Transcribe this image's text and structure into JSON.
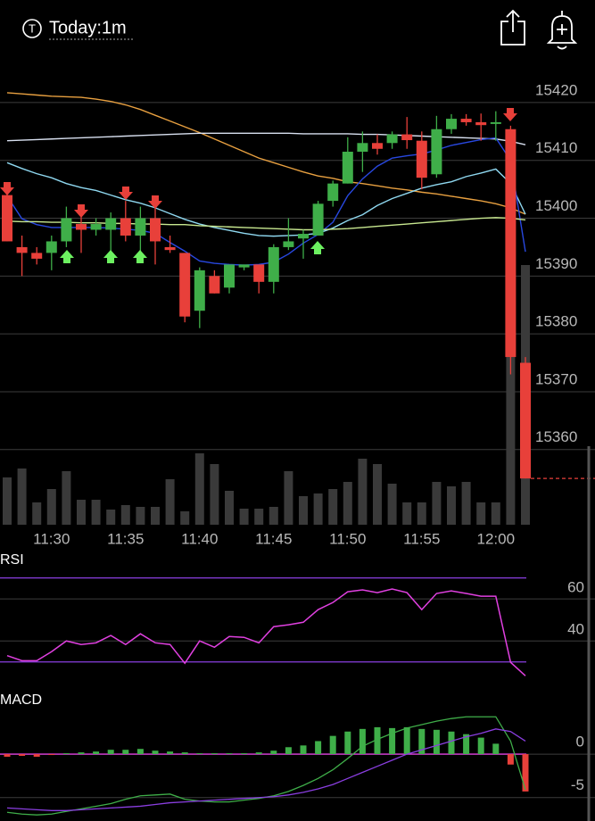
{
  "header": {
    "icon": "T",
    "title": "Today:1m"
  },
  "chart_data": [
    {
      "type": "candlestick",
      "categories": [
        null,
        null,
        null,
        "11:30",
        null,
        null,
        null,
        null,
        "11:35",
        null,
        null,
        null,
        null,
        "11:40",
        null,
        null,
        null,
        null,
        "11:45",
        null,
        null,
        null,
        null,
        "11:50",
        null,
        null,
        null,
        null,
        "11:55",
        null,
        null,
        null,
        null,
        "12:00",
        null,
        null
      ],
      "open": [
        15404,
        15395,
        15394,
        15394,
        15396,
        15399,
        15398,
        15398,
        15400,
        15397,
        15400,
        15395,
        15394,
        15384,
        15390,
        15388,
        15391.5,
        15392,
        15389,
        15395,
        15396.5,
        15397,
        15403,
        15406,
        15411.5,
        15413,
        15413,
        15414.5,
        15413.4,
        15407.6,
        15415.4,
        15417.2,
        15416.6,
        15416.3,
        15415.4,
        15375
      ],
      "high": [
        15406,
        15397,
        15395,
        15397,
        15402,
        15401,
        15400,
        15401,
        15403,
        15402,
        15403,
        15397,
        15394,
        15391.5,
        15391,
        15392,
        15392,
        15392,
        15395.5,
        15400,
        15398,
        15403,
        15406.5,
        15414,
        15415,
        15414.5,
        15415,
        15417.5,
        15415,
        15417.7,
        15418,
        15418,
        15418.1,
        15418.5,
        15416,
        15376
      ],
      "low": [
        15396,
        15390,
        15392,
        15391,
        15395,
        15394,
        15397,
        15394,
        15396,
        15394,
        15392,
        15394,
        15382,
        15381,
        15387,
        15387,
        15391,
        15387,
        15387,
        15394.5,
        15393,
        15397,
        15402,
        15406,
        15408,
        15411,
        15412,
        15412,
        15405,
        15407,
        15414.6,
        15416,
        15413.4,
        15413.4,
        15373,
        15355
      ],
      "close": [
        15396,
        15394,
        15393,
        15396,
        15400,
        15398,
        15399,
        15400,
        15397,
        15400,
        15396,
        15394.5,
        15383,
        15391,
        15387,
        15392,
        15392,
        15389,
        15395,
        15396,
        15397.3,
        15402.5,
        15406,
        15411.5,
        15413,
        15412,
        15414.5,
        15413.5,
        15407,
        15415.4,
        15417.2,
        15416.6,
        15416.1,
        15416.6,
        15376,
        15355
      ],
      "up_color": "#3fae49",
      "down_color": "#e8403a",
      "volume": [
        53,
        63,
        25,
        40,
        60,
        28,
        28,
        17,
        22,
        20,
        20,
        51,
        15,
        80,
        68,
        38,
        18,
        18,
        20,
        60,
        32,
        35,
        40,
        48,
        74,
        68,
        46,
        25,
        25,
        48,
        43,
        48,
        25,
        25,
        188,
        291
      ],
      "volume_color": "#3a3a3a",
      "series": [
        {
          "color": "#e8a040",
          "values": [
            15421.7,
            15421.5,
            15421.3,
            15421.1,
            15421,
            15420.9,
            15420.6,
            15420.2,
            15419.6,
            15418.8,
            15417.8,
            15416.8,
            15415.8,
            15414.8,
            15413.7,
            15412.6,
            15411.5,
            15410.4,
            15409.6,
            15408.8,
            15408,
            15407.3,
            15406.9,
            15406.3,
            15406,
            15405.6,
            15405.2,
            15404.9,
            15404.5,
            15404.2,
            15403.8,
            15403.4,
            15403,
            15402.5,
            15401.8,
            15400.7
          ]
        },
        {
          "color": "#d8e0f0",
          "values": [
            15413.4,
            15413.5,
            15413.6,
            15413.7,
            15413.8,
            15413.9,
            15414,
            15414.1,
            15414.2,
            15414.3,
            15414.4,
            15414.5,
            15414.6,
            15414.7,
            15414.7,
            15414.7,
            15414.7,
            15414.7,
            15414.7,
            15414.7,
            15414.6,
            15414.6,
            15414.6,
            15414.6,
            15414.5,
            15414.5,
            15414.4,
            15414.3,
            15414.2,
            15414.1,
            15414,
            15413.9,
            15413.8,
            15413.7,
            15413.3,
            15412.7
          ]
        },
        {
          "color": "#8fd8f0",
          "values": [
            15409.6,
            15408.6,
            15407.7,
            15407,
            15406,
            15405.3,
            15404.8,
            15404,
            15403.2,
            15402.6,
            15401.8,
            15400.8,
            15399.8,
            15399,
            15398.4,
            15397.9,
            15397.4,
            15397,
            15396.9,
            15397,
            15397.1,
            15397.4,
            15398.3,
            15399.6,
            15400.6,
            15402.2,
            15403.4,
            15404.3,
            15405.2,
            15405.8,
            15406.3,
            15407.2,
            15407.8,
            15408.5,
            15406,
            15400.7
          ]
        },
        {
          "color": "#2848e0",
          "values": [
            15403.8,
            15399.9,
            15398.9,
            15398.4,
            15398.4,
            15398.4,
            15398.4,
            15398.3,
            15398.1,
            15397.9,
            15397.4,
            15395.8,
            15394.3,
            15392.6,
            15392.2,
            15392,
            15391.9,
            15392,
            15392.4,
            15393.8,
            15395.7,
            15397.2,
            15399.3,
            15403.9,
            15406.8,
            15409,
            15410.4,
            15410.8,
            15411.1,
            15411.8,
            15412.6,
            15413.1,
            15413.6,
            15413.9,
            15410,
            15394.2
          ]
        },
        {
          "color": "#c8e890",
          "values": [
            15399.5,
            15399.4,
            15399.4,
            15399.3,
            15399.3,
            15399.2,
            15399.2,
            15399.1,
            15399.1,
            15399,
            15399,
            15398.9,
            15398.9,
            15398.7,
            15398.6,
            15398.5,
            15398.4,
            15398.3,
            15398.2,
            15398.1,
            15398,
            15398,
            15398.1,
            15398.2,
            15398.4,
            15398.6,
            15398.8,
            15399,
            15399.2,
            15399.4,
            15399.6,
            15399.8,
            15400,
            15400.1,
            15400,
            15399.7
          ]
        }
      ],
      "ylim": [
        15347,
        15424
      ],
      "yticks": [
        15420,
        15410,
        15400,
        15390,
        15380,
        15370,
        15360
      ],
      "grid": true
    },
    {
      "type": "line",
      "title": "RSI",
      "color": "#e040e0",
      "level_color": "#8a3ee0",
      "values": [
        33,
        30.6,
        30.6,
        34.9,
        40,
        38.3,
        39.1,
        42.6,
        38.3,
        43.4,
        39.1,
        38.3,
        29.4,
        40,
        37,
        42.1,
        41.7,
        39.1,
        46.8,
        47.7,
        48.9,
        54.9,
        58.3,
        63.4,
        64.3,
        63,
        64.7,
        63,
        54.9,
        62.6,
        63.8,
        62.6,
        61.3,
        61.3,
        29.8,
        23.4
      ],
      "levels": [
        70,
        30
      ],
      "ylim": [
        18,
        83
      ],
      "yticks": [
        60,
        40
      ],
      "grid": true
    },
    {
      "type": "macd",
      "title": "MACD",
      "histogram": [
        -0.3,
        -0.2,
        -0.3,
        -0.1,
        0.1,
        0.2,
        0.3,
        0.5,
        0.5,
        0.6,
        0.4,
        0.3,
        0.2,
        0.1,
        0.1,
        0.1,
        0.1,
        0.2,
        0.4,
        0.8,
        1,
        1.5,
        2.1,
        2.6,
        2.9,
        3.1,
        3,
        3.1,
        2.9,
        2.8,
        2.6,
        2.3,
        1.9,
        1.2,
        -1.2,
        -4.3
      ],
      "series": [
        {
          "color": "#3fae49",
          "values": [
            -6.7,
            -6.9,
            -7,
            -6.9,
            -6.6,
            -6.3,
            -6,
            -5.7,
            -5.2,
            -4.8,
            -4.7,
            -4.6,
            -5.2,
            -5.4,
            -5.5,
            -5.5,
            -5.3,
            -5.1,
            -4.8,
            -4.3,
            -3.6,
            -2.8,
            -1.8,
            -0.5,
            0.9,
            1.7,
            2.4,
            3,
            3.4,
            3.8,
            4.1,
            4.3,
            4.3,
            4.3,
            1.5,
            -4.1
          ]
        },
        {
          "color": "#8a3ee0",
          "values": [
            -6.2,
            -6.3,
            -6.4,
            -6.5,
            -6.5,
            -6.4,
            -6.3,
            -6.2,
            -6.1,
            -6,
            -5.8,
            -5.6,
            -5.5,
            -5.4,
            -5.3,
            -5.2,
            -5.1,
            -5,
            -4.9,
            -4.7,
            -4.4,
            -4,
            -3.5,
            -2.8,
            -2.1,
            -1.4,
            -0.7,
            0,
            0.5,
            1,
            1.5,
            2,
            2.4,
            2.9,
            2.6,
            1.5
          ]
        }
      ],
      "zero_color": "#e040e0",
      "ylim": [
        -7.7,
        7.2
      ],
      "yticks": [
        0,
        -5
      ],
      "grid": true
    }
  ]
}
